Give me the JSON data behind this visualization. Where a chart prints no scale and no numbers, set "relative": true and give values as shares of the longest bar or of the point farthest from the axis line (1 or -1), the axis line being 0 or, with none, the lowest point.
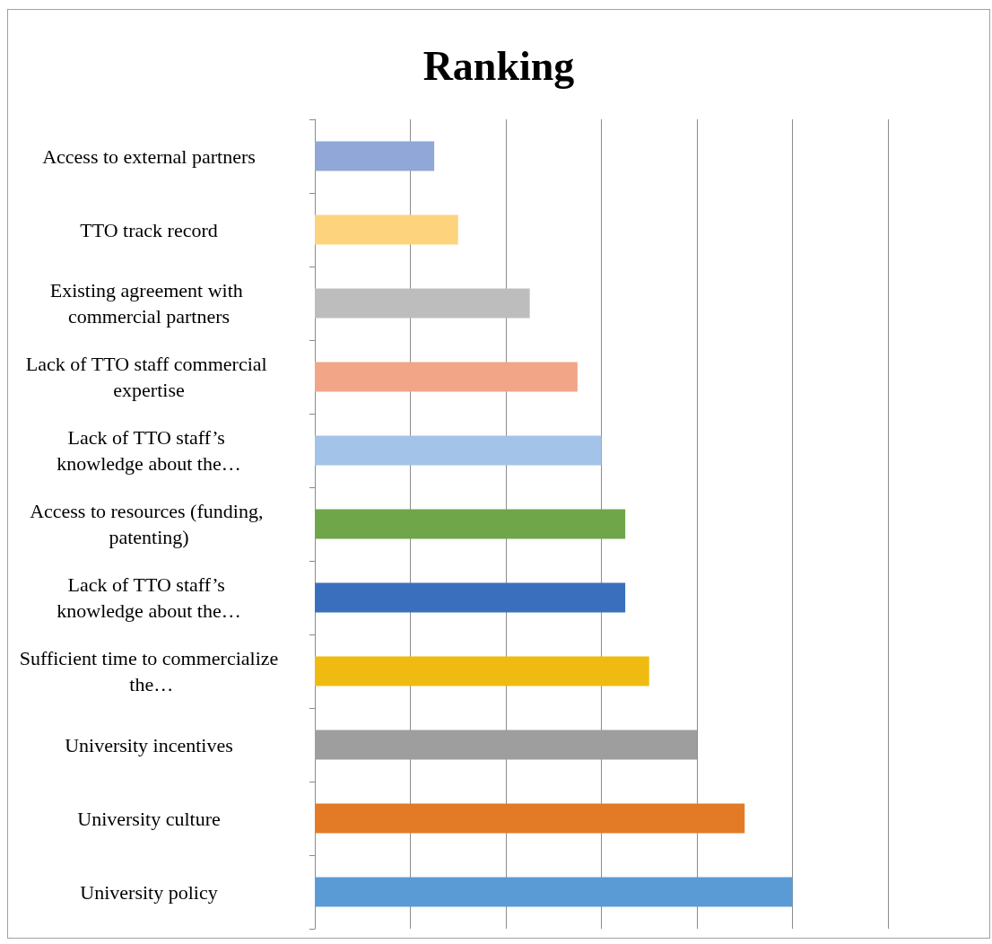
{
  "chart_data": {
    "type": "bar",
    "orientation": "horizontal",
    "relative": true,
    "title": "Ranking",
    "categories": [
      "Access to external partners",
      "TTO track record",
      "Existing agreement with commercial partners",
      "Lack of TTO staff commercial expertise",
      "Lack of TTO staff’s knowledge about the…",
      "Access to resources (funding, patenting)",
      "Lack of TTO staff’s knowledge about the…",
      "Sufficient time to commercialize the…",
      "University incentives",
      "University culture",
      "University policy"
    ],
    "values": [
      0.25,
      0.3,
      0.45,
      0.55,
      0.6,
      0.65,
      0.65,
      0.7,
      0.8,
      0.9,
      1
    ],
    "colors": [
      "#91a7d8",
      "#fdd37e",
      "#bdbdbd",
      "#f2a587",
      "#a4c3e8",
      "#6fa64a",
      "#3a6fbe",
      "#f0bb10",
      "#9e9e9e",
      "#e27a26",
      "#5b9bd5"
    ],
    "grid": "x"
  }
}
